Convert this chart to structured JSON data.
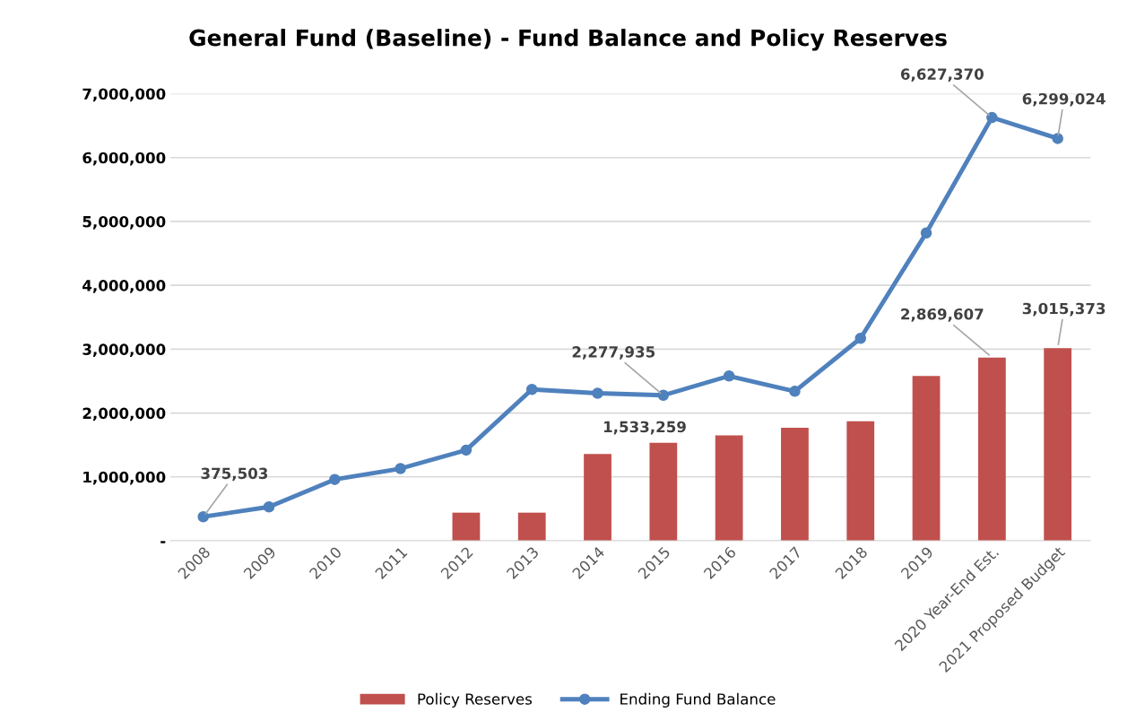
{
  "chart_data": {
    "type": "bar",
    "title": "General Fund (Baseline) - Fund Balance and Policy Reserves",
    "categories": [
      "2008",
      "2009",
      "2010",
      "2011",
      "2012",
      "2013",
      "2014",
      "2015",
      "2016",
      "2017",
      "2018",
      "2019",
      "2020 Year-End Est.",
      "2021 Proposed Budget"
    ],
    "series": [
      {
        "name": "Policy Reserves",
        "color": "#c0504d",
        "values": [
          null,
          null,
          null,
          null,
          440000,
          440000,
          1360000,
          1533259,
          1650000,
          1770000,
          1870000,
          2580000,
          2869607,
          3015373
        ],
        "value_labels": [
          null,
          null,
          null,
          null,
          null,
          null,
          null,
          "1,533,259",
          null,
          null,
          null,
          null,
          "2,869,607",
          "3,015,373"
        ]
      },
      {
        "name": "Ending Fund Balance",
        "type": "line",
        "color": "#4f81bd",
        "marker": "circle",
        "values": [
          375503,
          530000,
          960000,
          1130000,
          1420000,
          2370000,
          2310000,
          2277935,
          2580000,
          2340000,
          3170000,
          4820000,
          6627370,
          6299024
        ],
        "value_labels": [
          "375,503",
          null,
          null,
          null,
          null,
          null,
          null,
          "2,277,935",
          null,
          null,
          null,
          null,
          "6,627,370",
          "6,299,024"
        ]
      }
    ],
    "ylim": [
      0,
      7000000
    ],
    "yticks": [
      {
        "value": 0,
        "label": "-"
      },
      {
        "value": 1000000,
        "label": "1,000,000"
      },
      {
        "value": 2000000,
        "label": "2,000,000"
      },
      {
        "value": 3000000,
        "label": "3,000,000"
      },
      {
        "value": 4000000,
        "label": "4,000,000"
      },
      {
        "value": 5000000,
        "label": "5,000,000"
      },
      {
        "value": 6000000,
        "label": "6,000,000"
      },
      {
        "value": 7000000,
        "label": "7,000,000"
      }
    ],
    "grid": "y",
    "legend": "bottom"
  }
}
